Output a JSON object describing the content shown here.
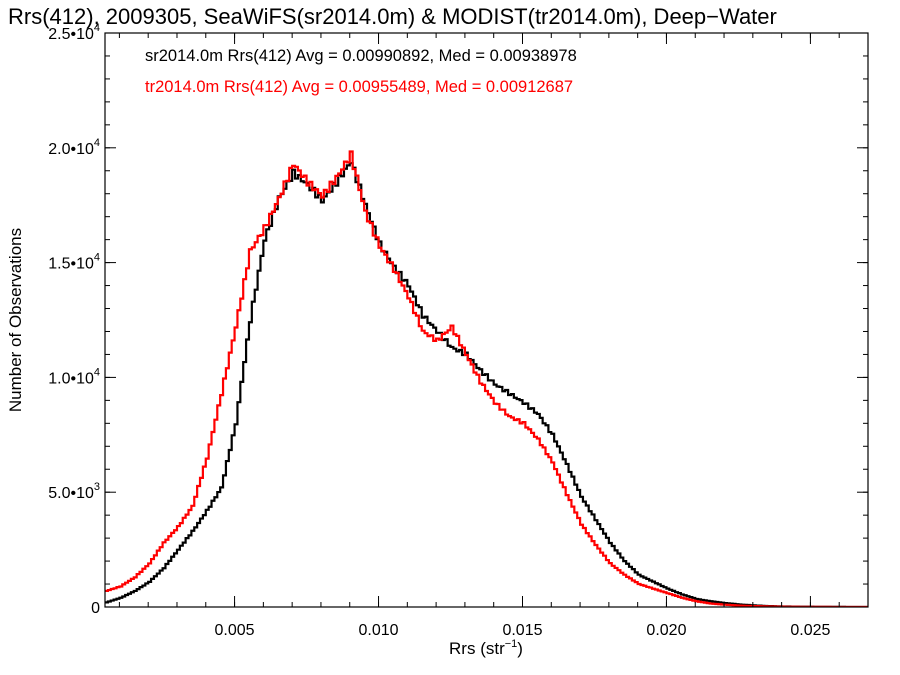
{
  "chart_data": {
    "type": "line",
    "title": "Rrs(412), 2009305, SeaWiFS(sr2014.0m) & MODIST(tr2014.0m), Deep−Water",
    "xlabel": "Rrs (str",
    "xlabel_superscript": "−1",
    "xlabel_suffix": ")",
    "ylabel": "Number of Observations",
    "xlim": [
      0.0005,
      0.027
    ],
    "ylim": [
      0,
      25000
    ],
    "x_ticks": [
      {
        "value": 0.005,
        "label": "0.005"
      },
      {
        "value": 0.01,
        "label": "0.010"
      },
      {
        "value": 0.015,
        "label": "0.015"
      },
      {
        "value": 0.02,
        "label": "0.020"
      },
      {
        "value": 0.025,
        "label": "0.025"
      }
    ],
    "y_ticks": [
      {
        "value": 0,
        "mantissa": "0",
        "exponent": ""
      },
      {
        "value": 5000,
        "mantissa": "5.0•10",
        "exponent": "3"
      },
      {
        "value": 10000,
        "mantissa": "1.0•10",
        "exponent": "4"
      },
      {
        "value": 15000,
        "mantissa": "1.5•10",
        "exponent": "4"
      },
      {
        "value": 20000,
        "mantissa": "2.0•10",
        "exponent": "4"
      },
      {
        "value": 25000,
        "mantissa": "2.5•10",
        "exponent": "4"
      }
    ],
    "x_minor_step": 0.001,
    "y_minor_step": 1000,
    "series": [
      {
        "name": "sr2014.0m",
        "legend": "sr2014.0m Rrs(412) Avg = 0.00990892, Med = 0.00938978",
        "color": "#000000",
        "x": [
          0.0005,
          0.001,
          0.0015,
          0.002,
          0.0025,
          0.003,
          0.0035,
          0.004,
          0.0045,
          0.005,
          0.0055,
          0.006,
          0.0065,
          0.007,
          0.0075,
          0.008,
          0.0085,
          0.009,
          0.0095,
          0.01,
          0.0105,
          0.011,
          0.0115,
          0.012,
          0.0125,
          0.013,
          0.0135,
          0.014,
          0.0145,
          0.015,
          0.0155,
          0.016,
          0.0165,
          0.017,
          0.0175,
          0.018,
          0.0185,
          0.019,
          0.0195,
          0.02,
          0.0205,
          0.021,
          0.0215,
          0.022,
          0.0225,
          0.023,
          0.0235,
          0.024,
          0.0245,
          0.025,
          0.0255,
          0.026,
          0.0265,
          0.027
        ],
        "y": [
          200,
          400,
          700,
          1100,
          1700,
          2500,
          3300,
          4200,
          5200,
          8000,
          12500,
          16000,
          17800,
          18900,
          18400,
          17700,
          18500,
          19400,
          17500,
          15800,
          14800,
          14000,
          12700,
          12000,
          11300,
          11000,
          10300,
          9700,
          9300,
          8900,
          8400,
          7500,
          6200,
          4800,
          3800,
          2800,
          2000,
          1400,
          1100,
          800,
          550,
          350,
          250,
          170,
          110,
          70,
          40,
          25,
          15,
          10,
          5,
          5,
          0,
          0
        ]
      },
      {
        "name": "tr2014.0m",
        "legend": "tr2014.0m Rrs(412) Avg = 0.00955489, Med = 0.00912687",
        "color": "#ff0000",
        "x": [
          0.0005,
          0.001,
          0.0015,
          0.002,
          0.0025,
          0.003,
          0.0035,
          0.004,
          0.0045,
          0.005,
          0.0055,
          0.006,
          0.0065,
          0.007,
          0.0075,
          0.008,
          0.0085,
          0.009,
          0.0095,
          0.01,
          0.0105,
          0.011,
          0.0115,
          0.012,
          0.0125,
          0.013,
          0.0135,
          0.014,
          0.0145,
          0.015,
          0.0155,
          0.016,
          0.0165,
          0.017,
          0.0175,
          0.018,
          0.0185,
          0.019,
          0.0195,
          0.02,
          0.0205,
          0.021,
          0.0215,
          0.022,
          0.0225,
          0.023,
          0.0235,
          0.024,
          0.0245,
          0.025,
          0.0255,
          0.026,
          0.0265,
          0.027
        ],
        "y": [
          700,
          900,
          1300,
          1900,
          2800,
          3500,
          4400,
          6500,
          9300,
          12200,
          15500,
          16500,
          17800,
          19300,
          18500,
          17900,
          18700,
          19700,
          17200,
          15700,
          14700,
          13500,
          12000,
          11600,
          12200,
          11000,
          9800,
          8900,
          8300,
          8000,
          7300,
          6300,
          4900,
          3600,
          2700,
          1900,
          1400,
          1000,
          800,
          600,
          400,
          250,
          150,
          100,
          60,
          40,
          25,
          15,
          10,
          5,
          5,
          0,
          0,
          0
        ]
      }
    ]
  }
}
